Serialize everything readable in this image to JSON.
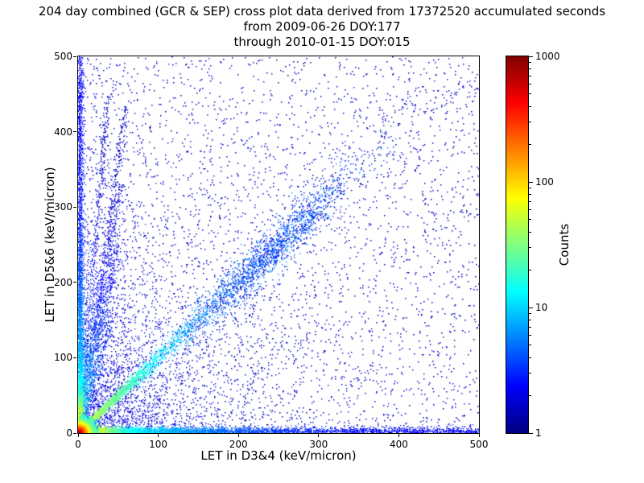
{
  "chart_data": {
    "type": "scatter",
    "title": "204 day combined (GCR & SEP) cross plot data derived from 17372520 accumulated seconds",
    "subtitle_from": "from 2009-06-26 DOY:177",
    "subtitle_through": "through 2010-01-15 DOY:015",
    "xlabel": "LET in D3&4 (keV/micron)",
    "ylabel": "LET in D5&6 (keV/micron)",
    "xlim": [
      0,
      500
    ],
    "ylim": [
      0,
      500
    ],
    "xticks": [
      "0",
      "100",
      "200",
      "300",
      "400",
      "500"
    ],
    "yticks": [
      "0",
      "100",
      "200",
      "300",
      "400",
      "500"
    ],
    "grid": false,
    "colormap": "jet",
    "colorbar": {
      "label": "Counts",
      "scale": "log",
      "min": 1,
      "max": 1000,
      "ticks": [
        "1",
        "10",
        "100",
        "1000"
      ]
    },
    "seed": 1337,
    "features": [
      {
        "kind": "uniform",
        "n": 2600,
        "xmin": 0,
        "xmax": 500,
        "ymin": 0,
        "ymax": 500,
        "count": 1.6,
        "size": 1.5
      },
      {
        "kind": "exp2d",
        "n": 2200,
        "sx": 140,
        "sy": 140,
        "count": 1.6,
        "size": 1.4
      },
      {
        "kind": "exp2d",
        "n": 1500,
        "sx": 45,
        "sy": 90,
        "count": 2.2,
        "size": 1.3
      },
      {
        "kind": "ray",
        "n": 430,
        "x_at_400": 33,
        "ymin": 10,
        "ymax": 450,
        "sigma": 2.0,
        "a": 14,
        "s": 80,
        "base": 1.5,
        "size": 1.3
      },
      {
        "kind": "ray",
        "n": 520,
        "x_at_400": 55,
        "ymin": 10,
        "ymax": 435,
        "sigma": 2.5,
        "a": 16,
        "s": 70,
        "base": 1.5,
        "size": 1.3
      },
      {
        "kind": "ray",
        "n": 380,
        "x_at_400": 64,
        "ymin": 10,
        "ymax": 330,
        "sigma": 2.5,
        "a": 16,
        "s": 70,
        "base": 1.5,
        "size": 1.3
      },
      {
        "kind": "ray",
        "n": 300,
        "x_at_400": 79,
        "ymin": 10,
        "ymax": 250,
        "sigma": 3.0,
        "a": 16,
        "s": 70,
        "base": 1.5,
        "size": 1.3
      },
      {
        "kind": "ray",
        "n": 200,
        "x_at_400": 110,
        "ymin": 10,
        "ymax": 160,
        "sigma": 3.5,
        "a": 14,
        "s": 60,
        "base": 1.5,
        "size": 1.3
      },
      {
        "kind": "diag_cloud",
        "n": 1500,
        "center": 235,
        "spread": 55,
        "sigma": 16,
        "cmin": 1,
        "cmax": 7,
        "size": 1.4
      },
      {
        "kind": "diag_cloud",
        "n": 260,
        "center": 380,
        "spread": 90,
        "sigma": 45,
        "cmin": 1,
        "cmax": 2,
        "size": 1.4
      },
      {
        "kind": "hband",
        "n": 4200,
        "ysigma": 3.5,
        "mix_uniform": 0.42,
        "xscale": 110,
        "a": 260,
        "s1": 14,
        "b": 20,
        "s2": 90,
        "base": 2.2,
        "size": 1.2
      },
      {
        "kind": "vband",
        "n": 3400,
        "xsigma": 3.2,
        "mix_uniform": 0.45,
        "yscale": 120,
        "a": 260,
        "s1": 14,
        "b": 20,
        "s2": 90,
        "base": 2.2,
        "size": 1.2
      },
      {
        "kind": "diag",
        "n": 2300,
        "xscale": 75,
        "xmax": 330,
        "sig_abs": 1.5,
        "sig_frac": 0.05,
        "a": 55,
        "s1": 55,
        "base": 3.2,
        "size": 1.3
      },
      {
        "kind": "core",
        "n": 2800,
        "sigma": 7.5,
        "a": 950,
        "r1": 4.5,
        "b": 70,
        "r2": 11,
        "size": 1.6
      }
    ]
  }
}
